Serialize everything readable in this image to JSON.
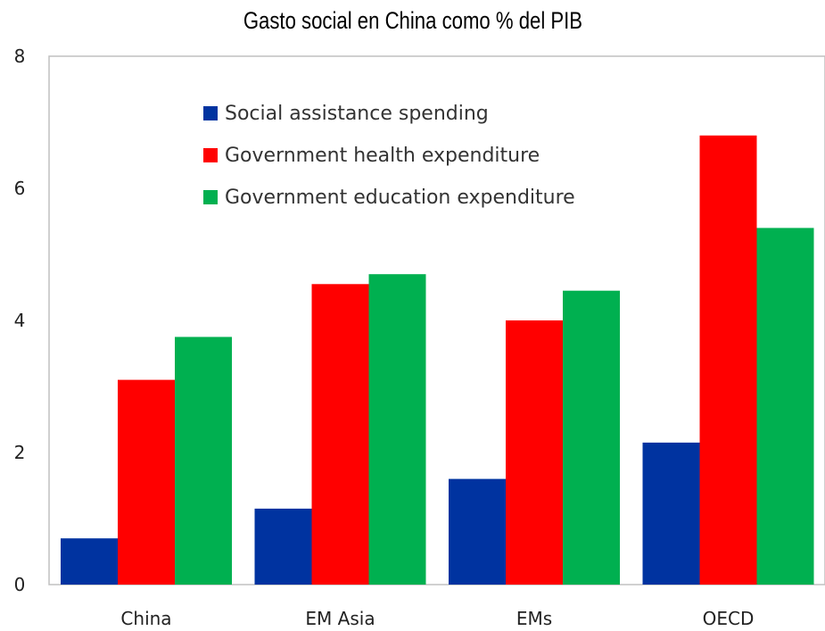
{
  "title": "Gasto social en China como % del PIB",
  "chart_data": {
    "type": "bar",
    "title": "Gasto social en China como % del PIB",
    "categories": [
      "China",
      "EM Asia",
      "EMs",
      "OECD"
    ],
    "series": [
      {
        "name": "Social assistance spending",
        "color": "#0033a0",
        "values": [
          0.7,
          1.15,
          1.6,
          2.15
        ]
      },
      {
        "name": "Government health expenditure",
        "color": "#ff0000",
        "values": [
          3.1,
          4.55,
          4.0,
          6.8
        ]
      },
      {
        "name": "Government education expenditure",
        "color": "#00b050",
        "values": [
          3.75,
          4.7,
          4.45,
          5.4
        ]
      }
    ],
    "ylim": [
      0,
      8
    ],
    "yticks": [
      "0",
      "2",
      "4",
      "6",
      "8"
    ],
    "legend_position": "top-left inside",
    "grid": false,
    "xlabel": "",
    "ylabel": ""
  }
}
